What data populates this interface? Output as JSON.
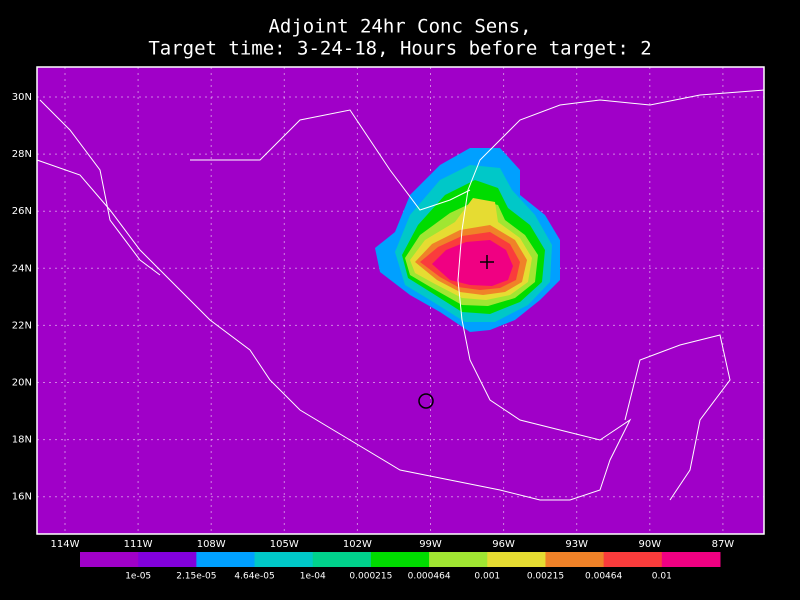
{
  "title": {
    "line1": "Adjoint 24hr Conc Sens,",
    "line2": "Target time: 3-24-18, Hours before target: 2"
  },
  "map": {
    "background_color": "#a000c8",
    "lat_labels": [
      "30N",
      "28N",
      "26N",
      "24N",
      "22N",
      "20N",
      "18N",
      "16N"
    ],
    "lon_labels": [
      "114W",
      "111W",
      "108W",
      "105W",
      "102W",
      "99W",
      "96W",
      "93W",
      "90W",
      "87W"
    ]
  },
  "colorbar": {
    "colors": [
      "#a000c8",
      "#8200dc",
      "#00a0ff",
      "#00c8c8",
      "#00d28c",
      "#00dc00",
      "#a0e632",
      "#e6dc32",
      "#f08228",
      "#fa3c3c",
      "#f00082"
    ],
    "labels": [
      "1e-05",
      "2.15e-05",
      "4.64e-05",
      "1e-04",
      "0.000215",
      "0.000464",
      "0.001",
      "0.00215",
      "0.00464",
      "0.01"
    ]
  }
}
